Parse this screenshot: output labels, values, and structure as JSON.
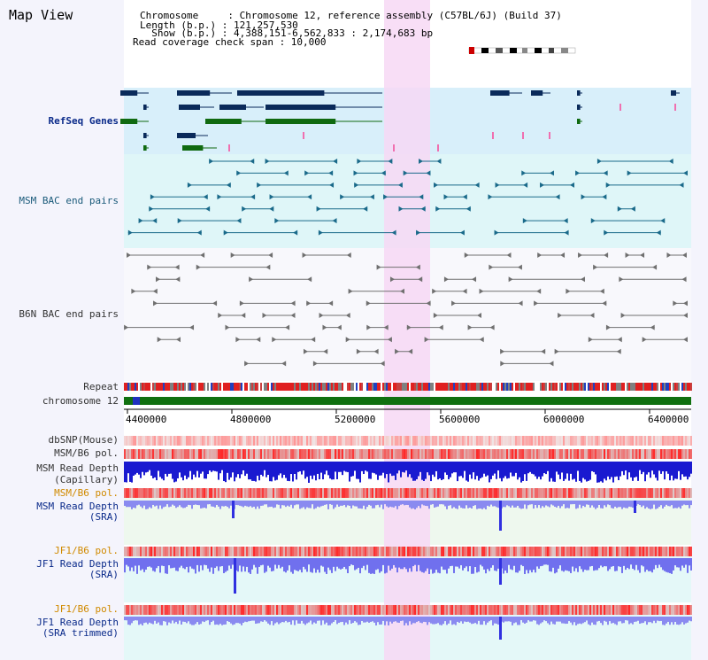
{
  "header": {
    "title": "Map View",
    "info_lines": [
      "Chromosome     : Chromosome 12, reference assembly (C57BL/6J) (Build 37)",
      "Length (b.p.) : 121,257,530",
      "  Show (b.p.) : 4,388,151-6,562,833 : 2,174,683 bp",
      "Read coverage check span : 10,000"
    ]
  },
  "tracks": {
    "refseq": "RefSeq Genes",
    "msm_bac": "MSM BAC end pairs",
    "b6n_bac": "B6N BAC end pairs",
    "repeat": "Repeat",
    "chromosome": "chromosome 12",
    "dbsnp": "dbSNP(Mouse)",
    "msm_b6_pol": "MSM/B6 pol.",
    "msm_read_depth_cap_1": "MSM Read Depth",
    "msm_read_depth_cap_2": "(Capillary)",
    "msm_b6_pol_2": "MSM/B6 pol.",
    "msm_read_depth_sra_1": "MSM Read Depth",
    "msm_read_depth_sra_2": "(SRA)",
    "jf1_b6_pol": "JF1/B6 pol.",
    "jf1_read_depth_1": "JF1 Read Depth",
    "jf1_read_depth_2": "(SRA)",
    "jf1_b6_pol_2": "JF1/B6 pol.",
    "jf1_trim_1": "JF1 Read Depth",
    "jf1_trim_2": "(SRA trimmed)"
  },
  "axis": {
    "ticks": [
      "4400000",
      "4800000",
      "5200000",
      "5600000",
      "6000000",
      "6400000"
    ]
  },
  "colors": {
    "highlight": "#f7d8f4",
    "refseq_bg": "#d8effa",
    "msm_bg": "#dff6f8",
    "gene_dark": "#0a2a5a",
    "gene_green": "#106a10",
    "chromosome_bar": "#107010"
  }
}
